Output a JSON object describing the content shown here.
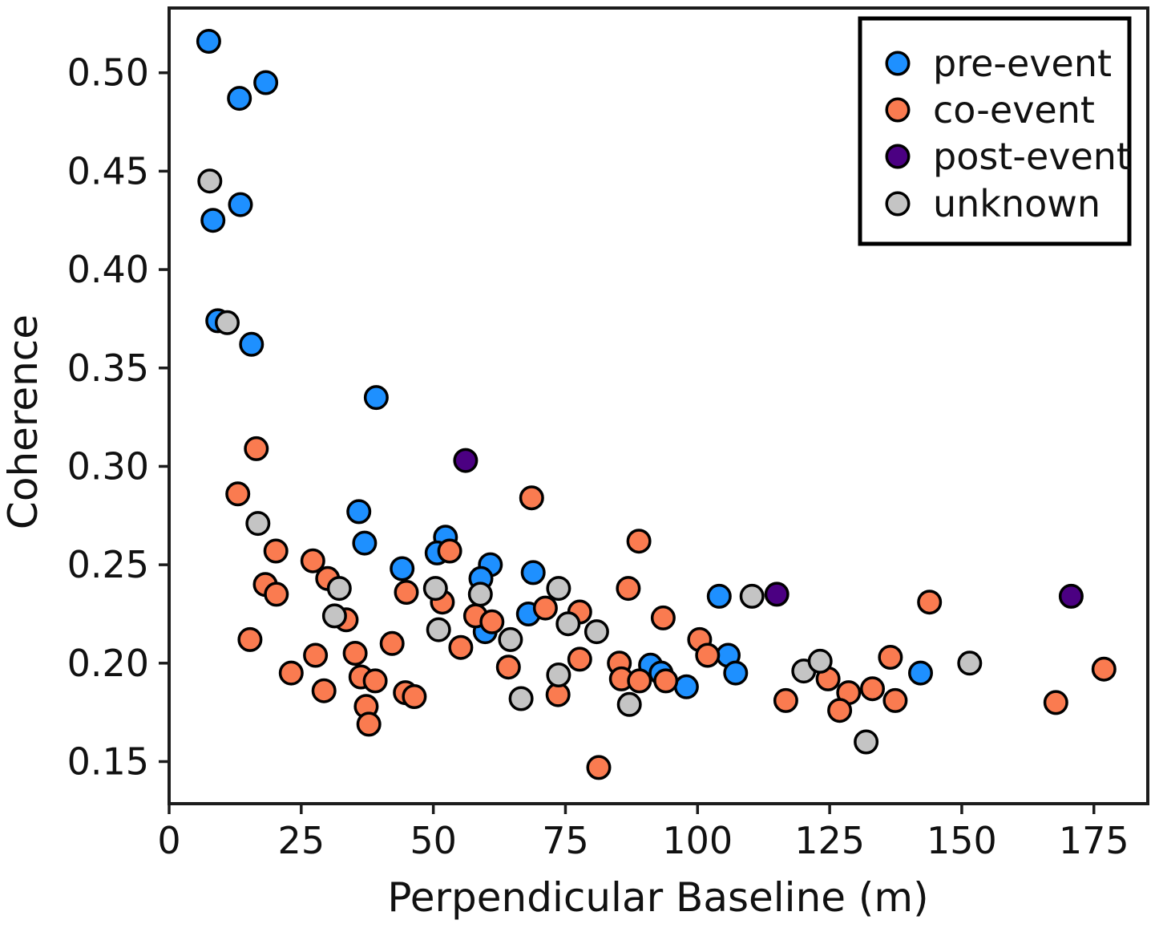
{
  "figure": {
    "type": "scatter-plot",
    "background": "#ffffff",
    "text_color": "#111111",
    "spine_color": "#1c1c1c"
  },
  "chart_data": {
    "type": "scatter",
    "title": "",
    "xlabel": "Perpendicular Baseline (m)",
    "ylabel": "Coherence",
    "xlim": [
      0,
      185.2
    ],
    "ylim": [
      0.1286,
      0.5329
    ],
    "grid": false,
    "x_ticks": [
      0,
      25,
      50,
      75,
      100,
      125,
      150,
      175
    ],
    "x_tick_labels": [
      "0",
      "25",
      "50",
      "75",
      "100",
      "125",
      "150",
      "175"
    ],
    "y_ticks": [
      0.15,
      0.2,
      0.25,
      0.3,
      0.35,
      0.4,
      0.45,
      0.5
    ],
    "y_tick_labels": [
      "0.15",
      "0.20",
      "0.25",
      "0.30",
      "0.35",
      "0.40",
      "0.45",
      "0.50"
    ],
    "legend_position": "upper right",
    "marker_edge_color": "#000000",
    "series": [
      {
        "name": "pre-event",
        "color": "#1E90FF",
        "points": [
          [
            7.5,
            0.516
          ],
          [
            18.3,
            0.495
          ],
          [
            13.3,
            0.487
          ],
          [
            13.5,
            0.433
          ],
          [
            8.3,
            0.425
          ],
          [
            9.2,
            0.374
          ],
          [
            15.6,
            0.362
          ],
          [
            39.2,
            0.335
          ],
          [
            35.9,
            0.277
          ],
          [
            37.0,
            0.261
          ],
          [
            52.3,
            0.264
          ],
          [
            50.7,
            0.256
          ],
          [
            44.1,
            0.248
          ],
          [
            60.8,
            0.25
          ],
          [
            59.0,
            0.243
          ],
          [
            68.9,
            0.246
          ],
          [
            68.0,
            0.225
          ],
          [
            59.8,
            0.216
          ],
          [
            91.1,
            0.199
          ],
          [
            93.1,
            0.195
          ],
          [
            97.9,
            0.188
          ],
          [
            104.1,
            0.234
          ],
          [
            105.8,
            0.204
          ],
          [
            107.2,
            0.195
          ],
          [
            142.2,
            0.195
          ]
        ]
      },
      {
        "name": "co-event",
        "color": "#FA7B50",
        "points": [
          [
            16.5,
            0.309
          ],
          [
            13.0,
            0.286
          ],
          [
            20.2,
            0.257
          ],
          [
            27.2,
            0.252
          ],
          [
            30.0,
            0.243
          ],
          [
            18.2,
            0.24
          ],
          [
            20.3,
            0.235
          ],
          [
            33.5,
            0.222
          ],
          [
            15.3,
            0.212
          ],
          [
            27.7,
            0.204
          ],
          [
            23.1,
            0.195
          ],
          [
            29.3,
            0.186
          ],
          [
            35.2,
            0.205
          ],
          [
            36.3,
            0.193
          ],
          [
            39.0,
            0.191
          ],
          [
            37.3,
            0.178
          ],
          [
            37.8,
            0.169
          ],
          [
            42.2,
            0.21
          ],
          [
            44.7,
            0.185
          ],
          [
            46.4,
            0.183
          ],
          [
            44.9,
            0.236
          ],
          [
            51.7,
            0.231
          ],
          [
            53.1,
            0.257
          ],
          [
            58.0,
            0.224
          ],
          [
            61.1,
            0.221
          ],
          [
            55.2,
            0.208
          ],
          [
            64.2,
            0.198
          ],
          [
            68.6,
            0.284
          ],
          [
            71.2,
            0.228
          ],
          [
            77.7,
            0.226
          ],
          [
            77.7,
            0.202
          ],
          [
            73.6,
            0.184
          ],
          [
            81.3,
            0.147
          ],
          [
            85.2,
            0.2
          ],
          [
            85.6,
            0.192
          ],
          [
            89.0,
            0.191
          ],
          [
            94.0,
            0.191
          ],
          [
            88.9,
            0.262
          ],
          [
            86.9,
            0.238
          ],
          [
            93.5,
            0.223
          ],
          [
            100.4,
            0.212
          ],
          [
            101.9,
            0.204
          ],
          [
            116.7,
            0.181
          ],
          [
            124.7,
            0.192
          ],
          [
            128.6,
            0.185
          ],
          [
            126.9,
            0.176
          ],
          [
            133.1,
            0.187
          ],
          [
            137.4,
            0.181
          ],
          [
            136.5,
            0.203
          ],
          [
            143.9,
            0.231
          ],
          [
            176.9,
            0.197
          ],
          [
            167.8,
            0.18
          ]
        ]
      },
      {
        "name": "post-event",
        "color": "#4B0082",
        "points": [
          [
            56.1,
            0.303
          ],
          [
            115.0,
            0.235
          ],
          [
            170.7,
            0.234
          ]
        ]
      },
      {
        "name": "unknown",
        "color": "#C4C4C4",
        "points": [
          [
            7.7,
            0.445
          ],
          [
            11.0,
            0.373
          ],
          [
            16.8,
            0.271
          ],
          [
            32.2,
            0.238
          ],
          [
            31.3,
            0.224
          ],
          [
            50.4,
            0.238
          ],
          [
            51.0,
            0.217
          ],
          [
            58.9,
            0.235
          ],
          [
            73.7,
            0.238
          ],
          [
            64.6,
            0.212
          ],
          [
            75.5,
            0.22
          ],
          [
            80.9,
            0.216
          ],
          [
            73.7,
            0.194
          ],
          [
            66.6,
            0.182
          ],
          [
            87.1,
            0.179
          ],
          [
            110.3,
            0.234
          ],
          [
            120.1,
            0.196
          ],
          [
            123.2,
            0.201
          ],
          [
            131.9,
            0.16
          ],
          [
            151.5,
            0.2
          ]
        ]
      }
    ]
  },
  "legend": {
    "items": [
      {
        "label": "pre-event"
      },
      {
        "label": "co-event"
      },
      {
        "label": "post-event"
      },
      {
        "label": "unknown"
      }
    ]
  }
}
